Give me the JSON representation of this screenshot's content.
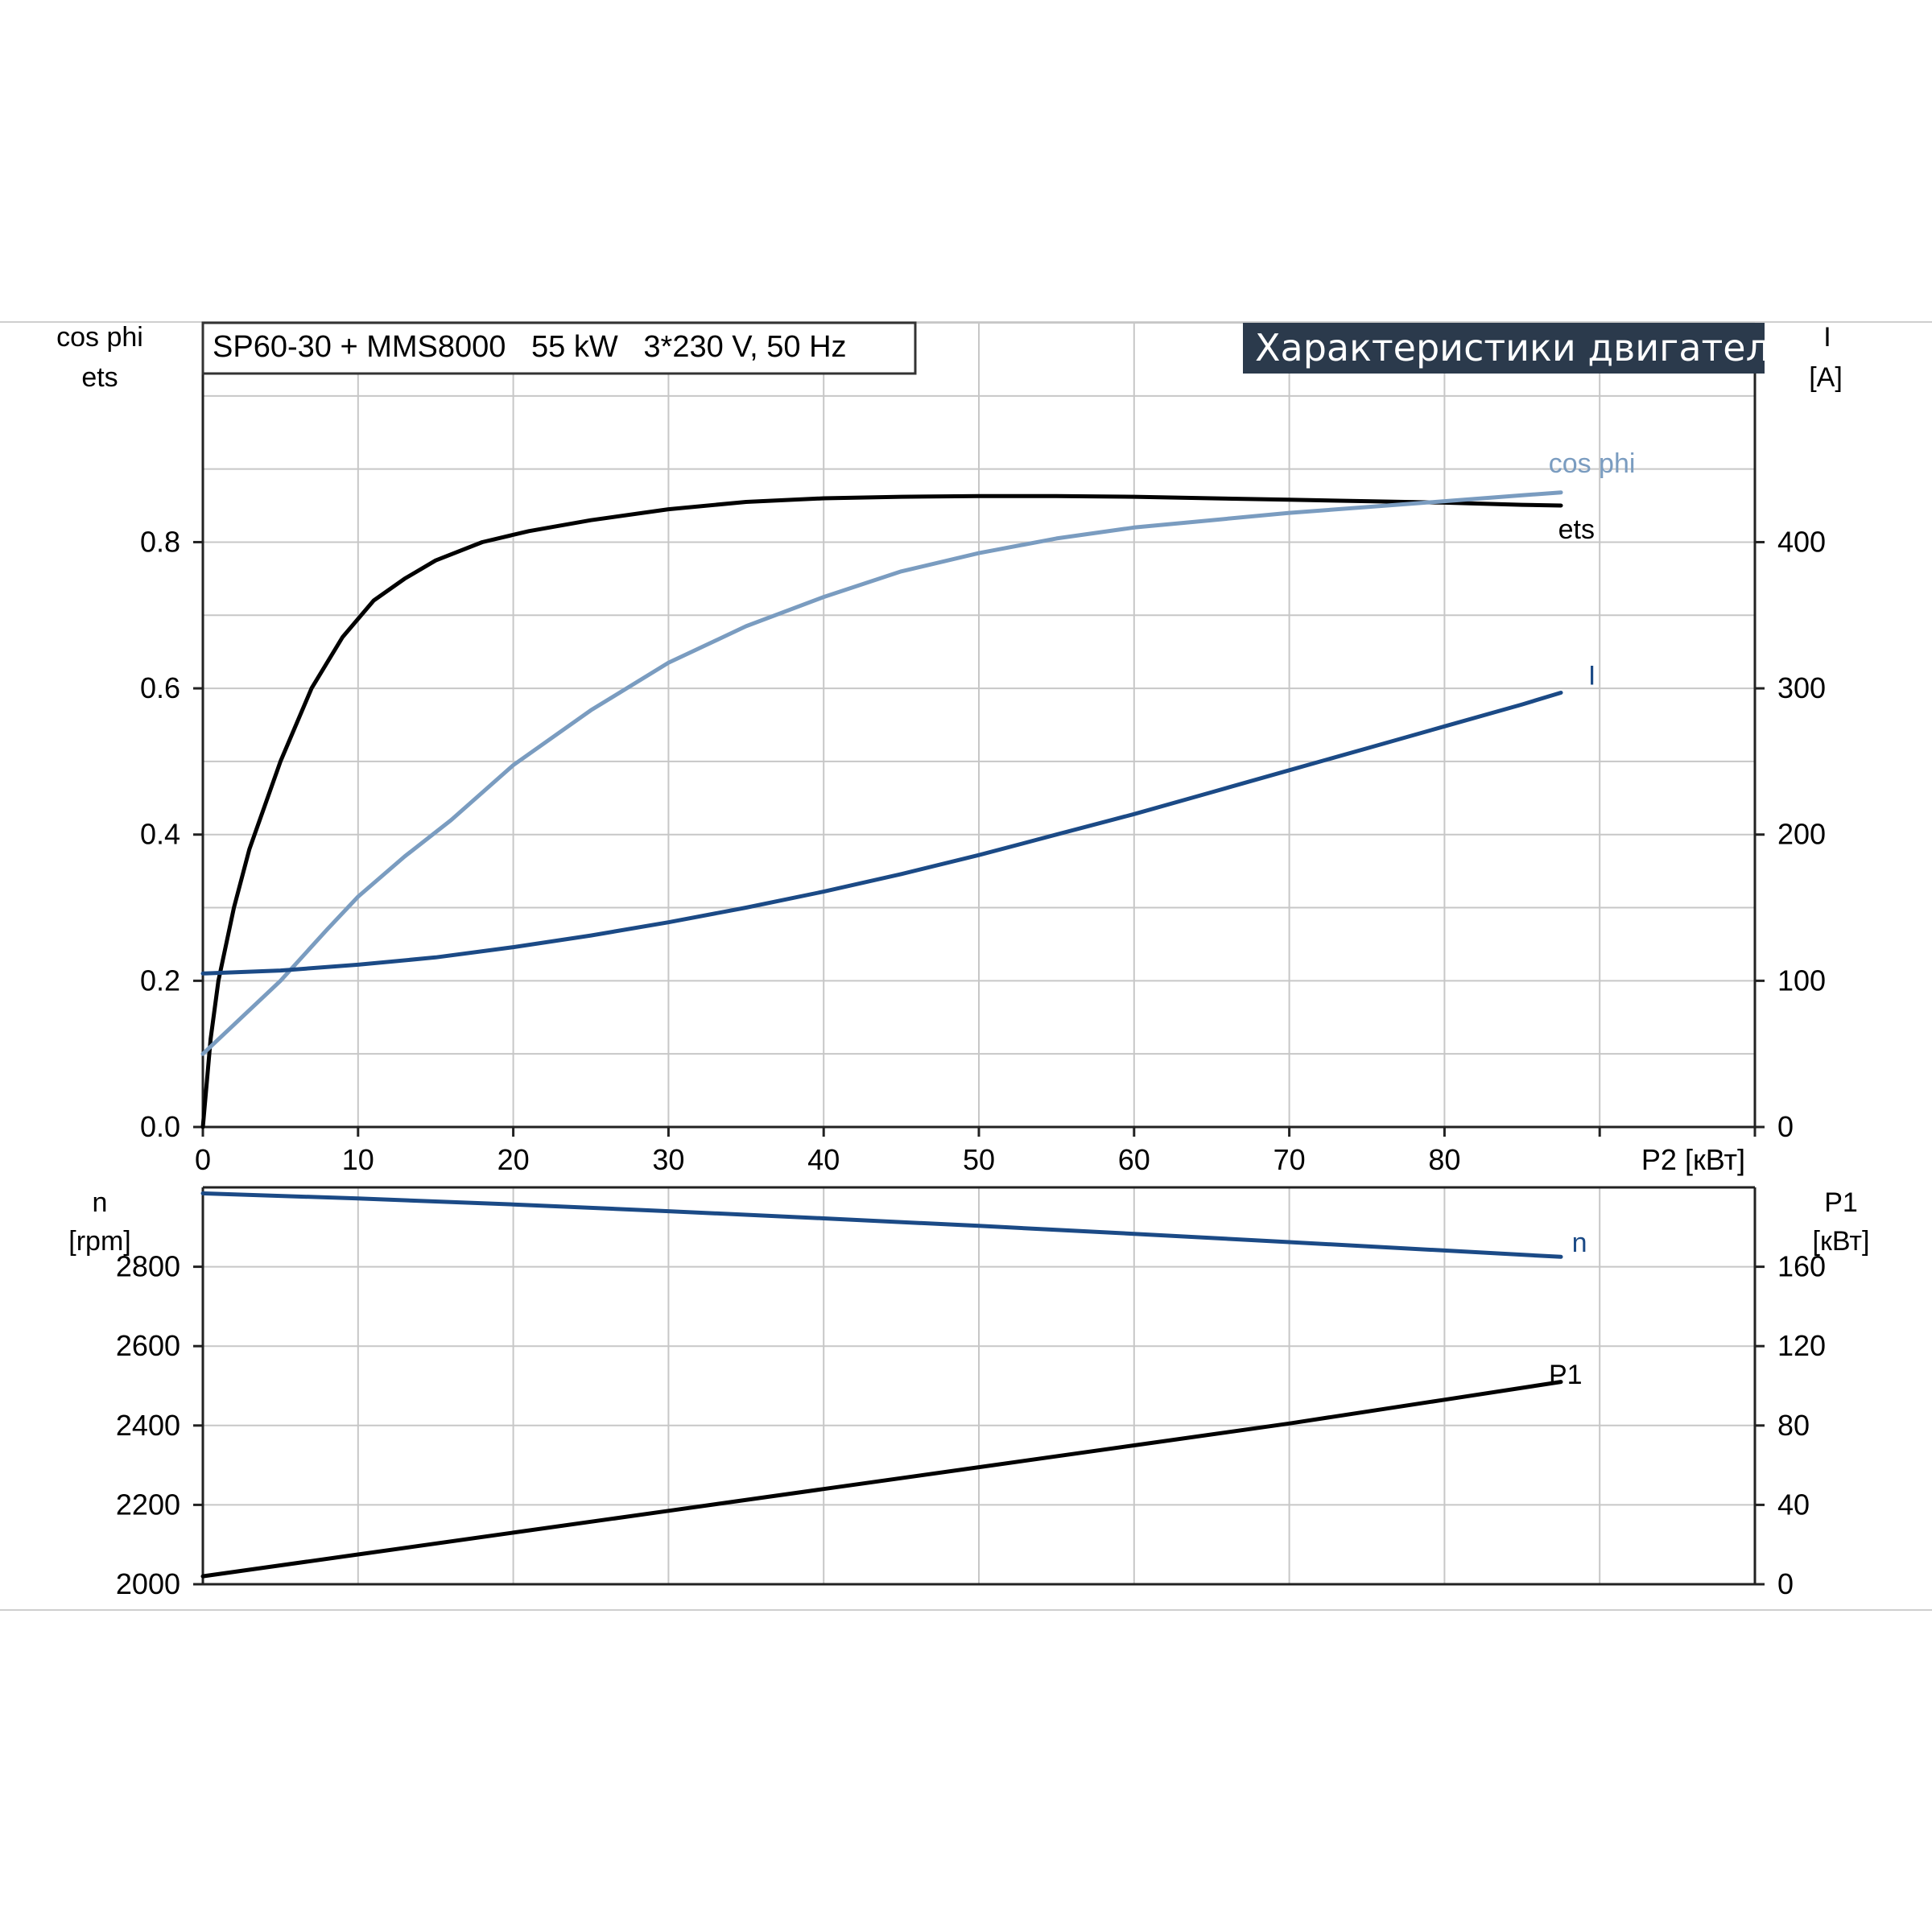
{
  "header": {
    "model_text": "SP60-30 + MMS8000   55 kW   3*230 V, 50 Hz",
    "banner_text": "Характеристики двигателя",
    "banner_color": "#2b3a4c"
  },
  "colors": {
    "ets": "#000000",
    "cos_phi": "#7a9cc0",
    "I": "#1b4a86",
    "n": "#1b4a86",
    "P1": "#000000",
    "grid": "#c7c7c7"
  },
  "chart_data": [
    {
      "id": "motor-top",
      "type": "line",
      "title": "Характеристики двигателя",
      "x_axis": {
        "label": "P2 [кВт]",
        "range": [
          0,
          100
        ],
        "ticks": [
          0,
          10,
          20,
          30,
          40,
          50,
          60,
          70,
          80
        ],
        "grid_ticks": [
          0,
          10,
          20,
          30,
          40,
          50,
          60,
          70,
          80,
          90,
          100
        ]
      },
      "y_left": {
        "label_line1": "cos phi",
        "label_line2": "ets",
        "range": [
          0,
          1.1
        ],
        "ticks": [
          "0.0",
          "0.2",
          "0.4",
          "0.6",
          "0.8"
        ],
        "tick_values": [
          0,
          0.2,
          0.4,
          0.6,
          0.8
        ],
        "grid_ticks": [
          0,
          0.1,
          0.2,
          0.3,
          0.4,
          0.5,
          0.6,
          0.7,
          0.8,
          0.9,
          1.0,
          1.1
        ]
      },
      "y_right": {
        "label_line1": "I",
        "label_line2": "[A]",
        "range": [
          0,
          550
        ],
        "ticks": [
          "0",
          "100",
          "200",
          "300",
          "400"
        ],
        "tick_values": [
          0,
          100,
          200,
          300,
          400
        ]
      },
      "grid": true,
      "series": [
        {
          "name": "ets",
          "axis": "left",
          "color_key": "ets",
          "x": [
            0,
            0.5,
            1,
            2,
            3,
            4,
            5,
            7,
            9,
            11,
            13,
            15,
            18,
            21,
            25,
            30,
            35,
            40,
            45,
            50,
            55,
            60,
            65,
            70,
            75,
            80,
            85,
            87.5
          ],
          "y": [
            0,
            0.12,
            0.2,
            0.3,
            0.38,
            0.44,
            0.5,
            0.6,
            0.67,
            0.72,
            0.75,
            0.775,
            0.8,
            0.815,
            0.83,
            0.845,
            0.855,
            0.86,
            0.862,
            0.863,
            0.863,
            0.862,
            0.86,
            0.858,
            0.856,
            0.854,
            0.851,
            0.85
          ]
        },
        {
          "name": "cos phi",
          "axis": "left",
          "color_key": "cos_phi",
          "x": [
            0,
            2,
            5,
            8,
            10,
            13,
            16,
            20,
            25,
            30,
            35,
            40,
            45,
            50,
            55,
            60,
            65,
            70,
            75,
            80,
            85,
            87.5
          ],
          "y": [
            0.1,
            0.14,
            0.2,
            0.27,
            0.315,
            0.37,
            0.42,
            0.495,
            0.57,
            0.635,
            0.685,
            0.725,
            0.76,
            0.785,
            0.805,
            0.82,
            0.83,
            0.84,
            0.848,
            0.856,
            0.864,
            0.868
          ]
        },
        {
          "name": "I",
          "axis": "right",
          "color_key": "I",
          "x": [
            0,
            5,
            10,
            15,
            20,
            25,
            30,
            35,
            40,
            45,
            50,
            55,
            60,
            65,
            70,
            75,
            80,
            85,
            87.5
          ],
          "y": [
            105,
            107,
            111,
            116,
            123,
            131,
            140,
            150,
            161,
            173,
            186,
            200,
            214,
            229,
            244,
            259,
            274,
            289,
            297
          ]
        }
      ],
      "annotations": [
        {
          "text": "cos phi",
          "color_key": "cos_phi",
          "x": 89.5,
          "y": 0.895
        },
        {
          "text": "ets",
          "color_key": "ets",
          "x": 88.5,
          "y": 0.805
        },
        {
          "text": "I",
          "color_key": "I",
          "x": 89.5,
          "y": 0.605
        }
      ]
    },
    {
      "id": "motor-bottom",
      "type": "line",
      "x_axis": {
        "range": [
          0,
          100
        ],
        "grid_ticks": [
          0,
          10,
          20,
          30,
          40,
          50,
          60,
          70,
          80,
          90,
          100
        ]
      },
      "y_left": {
        "label_line1": "n",
        "label_line2": "[rpm]",
        "range": [
          2000,
          3000
        ],
        "ticks": [
          "2000",
          "2200",
          "2400",
          "2600",
          "2800"
        ],
        "tick_values": [
          2000,
          2200,
          2400,
          2600,
          2800
        ],
        "grid_ticks": [
          2000,
          2200,
          2400,
          2600,
          2800,
          3000
        ]
      },
      "y_right": {
        "label_line1": "P1",
        "label_line2": "[кВт]",
        "range": [
          0,
          200
        ],
        "ticks": [
          "0",
          "40",
          "80",
          "120",
          "160"
        ],
        "tick_values": [
          0,
          40,
          80,
          120,
          160
        ]
      },
      "grid": true,
      "series": [
        {
          "name": "n",
          "axis": "left",
          "color_key": "n",
          "x": [
            0,
            10,
            20,
            30,
            40,
            50,
            60,
            70,
            80,
            87.5
          ],
          "y": [
            2985,
            2972,
            2957,
            2940,
            2922,
            2903,
            2883,
            2862,
            2841,
            2825
          ]
        },
        {
          "name": "P1",
          "axis": "right",
          "color_key": "P1",
          "x": [
            0,
            10,
            20,
            30,
            40,
            50,
            60,
            70,
            80,
            87.5
          ],
          "y": [
            4,
            15,
            26,
            37,
            48,
            59,
            70,
            81,
            93,
            102
          ]
        }
      ],
      "annotations": [
        {
          "text": "n",
          "color_key": "n",
          "x": 88.7,
          "y": 2838
        },
        {
          "text": "P1",
          "color_key": "P1",
          "x": 87.8,
          "y": 2505
        }
      ]
    }
  ]
}
